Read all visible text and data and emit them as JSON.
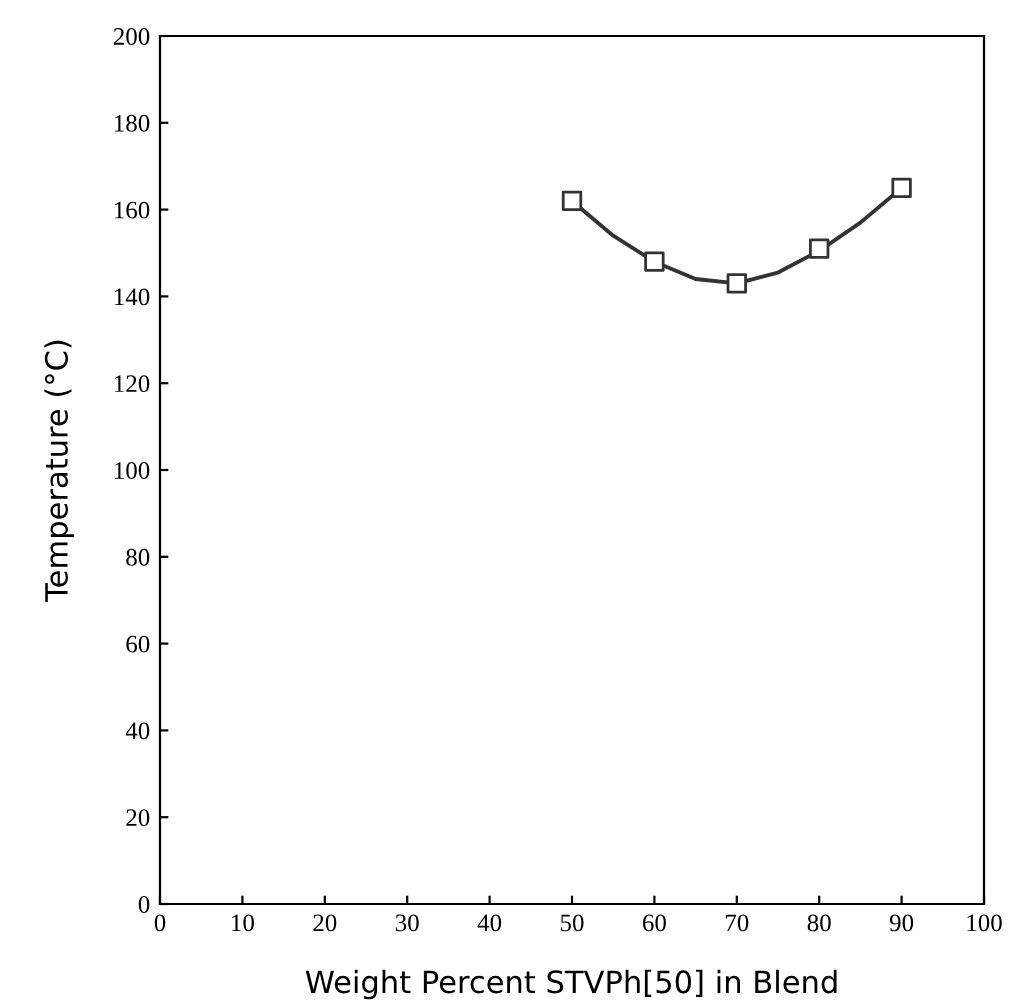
{
  "chart_data": {
    "type": "scatter",
    "xlabel": "Weight Percent STVPh[50] in Blend",
    "ylabel": "Temperature (°C)",
    "xlim": [
      0,
      100
    ],
    "xticks": [
      0,
      10,
      20,
      30,
      40,
      50,
      60,
      70,
      80,
      90,
      100
    ],
    "ylim": [
      0,
      200
    ],
    "yticks": [
      0,
      20,
      40,
      60,
      80,
      100,
      120,
      140,
      160,
      180,
      200
    ],
    "grid": false,
    "legend": false,
    "series": [
      {
        "type": "scatter",
        "color": "#333333",
        "marker": "square",
        "x": [
          50,
          60,
          70,
          80,
          90
        ],
        "values": [
          162,
          148,
          143,
          151,
          165
        ]
      },
      {
        "type": "line",
        "color": "#333333",
        "marker": "none",
        "line_style": "solid",
        "x": [
          50,
          55,
          60,
          65,
          70,
          75,
          80,
          85,
          90
        ],
        "values": [
          162,
          154,
          148,
          144,
          143,
          145.5,
          150.5,
          157,
          165
        ]
      }
    ]
  }
}
